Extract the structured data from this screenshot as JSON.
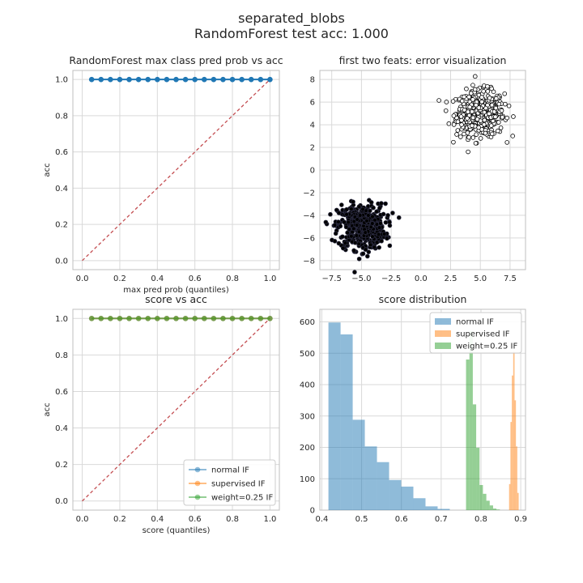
{
  "figure": {
    "title_line1": "separated_blobs",
    "title_line2": "RandomForest test acc: 1.000"
  },
  "chart_data": [
    {
      "id": "p1",
      "type": "line",
      "title": "RandomForest max class pred prob vs acc",
      "xlabel": "max pred prob (quantiles)",
      "ylabel": "acc",
      "xlim": [
        -0.05,
        1.05
      ],
      "ylim": [
        -0.05,
        1.05
      ],
      "xticks": [
        "0.0",
        "0.2",
        "0.4",
        "0.6",
        "0.8",
        "1.0"
      ],
      "yticks": [
        "0.0",
        "0.2",
        "0.4",
        "0.6",
        "0.8",
        "1.0"
      ],
      "grid": true,
      "series": [
        {
          "name": "",
          "color": "#1f77b4",
          "marker": "o",
          "alpha": 1.0,
          "x": [
            0.05,
            0.1,
            0.15,
            0.2,
            0.25,
            0.3,
            0.35,
            0.4,
            0.45,
            0.5,
            0.55,
            0.6,
            0.65,
            0.7,
            0.75,
            0.8,
            0.85,
            0.9,
            0.95,
            1.0
          ],
          "y": [
            1,
            1,
            1,
            1,
            1,
            1,
            1,
            1,
            1,
            1,
            1,
            1,
            1,
            1,
            1,
            1,
            1,
            1,
            1,
            1
          ]
        }
      ],
      "reference_line": {
        "x": [
          0,
          1
        ],
        "y": [
          0,
          1
        ],
        "color": "#c44e52",
        "style": "dashed"
      }
    },
    {
      "id": "p2",
      "type": "scatter",
      "title": "first two feats: error visualization",
      "xlabel": "",
      "ylabel": "",
      "xlim": [
        -8.5,
        8.8
      ],
      "ylim": [
        -8.8,
        8.8
      ],
      "xticks": [
        "−7.5",
        "−5.0",
        "−2.5",
        "0.0",
        "2.5",
        "5.0",
        "7.5"
      ],
      "yticks": [
        "−8",
        "−6",
        "−4",
        "−2",
        "0",
        "2",
        "4",
        "6",
        "8"
      ],
      "grid": true,
      "clusters": [
        {
          "center": [
            5.0,
            5.0
          ],
          "spread": 1.0,
          "count": 500,
          "face": "#ffffff",
          "edge": "#000000"
        },
        {
          "center": [
            -5.0,
            -5.0
          ],
          "spread": 1.0,
          "count": 500,
          "face": "#000000",
          "edge": "#2a2a40"
        }
      ]
    },
    {
      "id": "p3",
      "type": "line",
      "title": "score vs acc",
      "xlabel": "score (quantiles)",
      "ylabel": "acc",
      "xlim": [
        -0.05,
        1.05
      ],
      "ylim": [
        -0.05,
        1.05
      ],
      "xticks": [
        "0.0",
        "0.2",
        "0.4",
        "0.6",
        "0.8",
        "1.0"
      ],
      "yticks": [
        "0.0",
        "0.2",
        "0.4",
        "0.6",
        "0.8",
        "1.0"
      ],
      "grid": true,
      "legend": "lower-right",
      "series": [
        {
          "name": "normal IF",
          "color": "#1f77b4",
          "marker": "o",
          "alpha": 0.5,
          "x": [
            0.05,
            0.1,
            0.15,
            0.2,
            0.25,
            0.3,
            0.35,
            0.4,
            0.45,
            0.5,
            0.55,
            0.6,
            0.65,
            0.7,
            0.75,
            0.8,
            0.85,
            0.9,
            0.95,
            1.0
          ],
          "y": [
            1,
            1,
            1,
            1,
            1,
            1,
            1,
            1,
            1,
            1,
            1,
            1,
            1,
            1,
            1,
            1,
            1,
            1,
            1,
            1
          ]
        },
        {
          "name": "supervised IF",
          "color": "#ff7f0e",
          "marker": "o",
          "alpha": 0.5,
          "x": [
            0.05,
            0.1,
            0.15,
            0.2,
            0.25,
            0.3,
            0.35,
            0.4,
            0.45,
            0.5,
            0.55,
            0.6,
            0.65,
            0.7,
            0.75,
            0.8,
            0.85,
            0.9,
            0.95,
            1.0
          ],
          "y": [
            1,
            1,
            1,
            1,
            1,
            1,
            1,
            1,
            1,
            1,
            1,
            1,
            1,
            1,
            1,
            1,
            1,
            1,
            1,
            1
          ]
        },
        {
          "name": "weight=0.25 IF",
          "color": "#2ca02c",
          "marker": "o",
          "alpha": 0.5,
          "x": [
            0.05,
            0.1,
            0.15,
            0.2,
            0.25,
            0.3,
            0.35,
            0.4,
            0.45,
            0.5,
            0.55,
            0.6,
            0.65,
            0.7,
            0.75,
            0.8,
            0.85,
            0.9,
            0.95,
            1.0
          ],
          "y": [
            1,
            1,
            1,
            1,
            1,
            1,
            1,
            1,
            1,
            1,
            1,
            1,
            1,
            1,
            1,
            1,
            1,
            1,
            1,
            1
          ]
        }
      ],
      "reference_line": {
        "x": [
          0,
          1
        ],
        "y": [
          0,
          1
        ],
        "color": "#c44e52",
        "style": "dashed"
      }
    },
    {
      "id": "p4",
      "type": "bar",
      "title": "score distribution",
      "xlabel": "",
      "ylabel": "",
      "xlim": [
        0.395,
        0.912
      ],
      "ylim": [
        0,
        640
      ],
      "xticks": [
        "0.4",
        "0.5",
        "0.6",
        "0.7",
        "0.8",
        "0.9"
      ],
      "xtick_values": [
        0.4,
        0.5,
        0.6,
        0.7,
        0.8,
        0.9
      ],
      "yticks": [
        "0",
        "100",
        "200",
        "300",
        "400",
        "500",
        "600"
      ],
      "ytick_values": [
        0,
        100,
        200,
        300,
        400,
        500,
        600
      ],
      "grid": true,
      "legend": "top-right",
      "series": [
        {
          "name": "normal IF",
          "color": "#1f77b4",
          "alpha": 0.5,
          "bin_start": 0.4166,
          "bin_width": 0.0305,
          "values": [
            598,
            560,
            288,
            203,
            153,
            96,
            75,
            38,
            12,
            4,
            0,
            0
          ]
        },
        {
          "name": "supervised IF",
          "color": "#ff7f0e",
          "alpha": 0.5,
          "bin_start": 0.8707,
          "bin_width": 0.00345,
          "values": [
            83,
            281,
            429,
            506,
            350,
            203,
            55
          ]
        },
        {
          "name": "weight=0.25 IF",
          "color": "#2ca02c",
          "alpha": 0.5,
          "bin_start": 0.7625,
          "bin_width": 0.0085,
          "values": [
            480,
            570,
            337,
            199,
            80,
            52,
            30,
            15,
            5,
            2
          ]
        }
      ]
    }
  ]
}
